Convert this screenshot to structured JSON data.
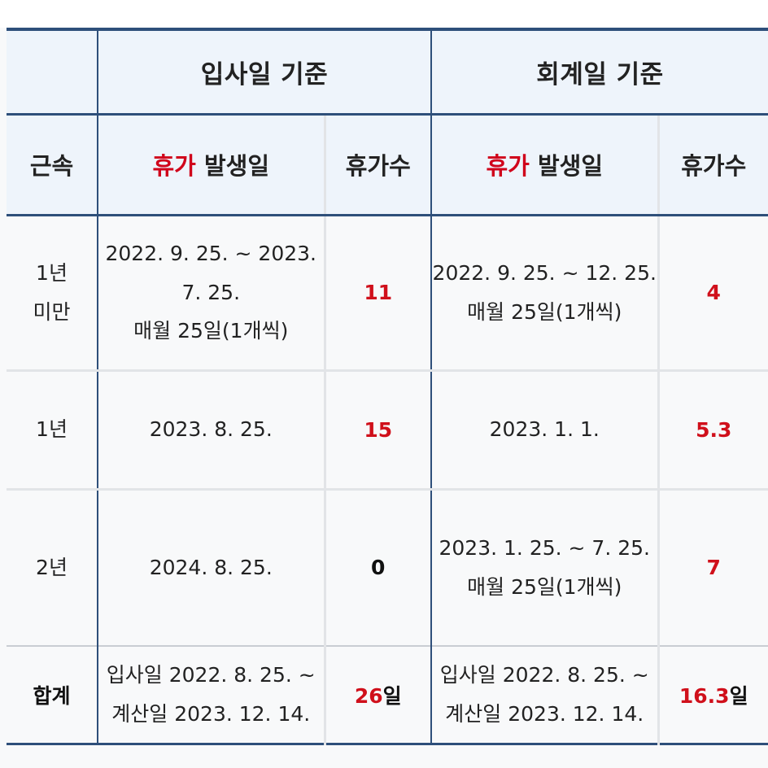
{
  "table": {
    "group_headers": {
      "hire_date_basis": "입사일 기준",
      "accounting_basis": "회계일 기준"
    },
    "column_headers": {
      "tenure": "근속",
      "leave_word": "휴가",
      "issue_date_rest": " 발생일",
      "leave_count": "휴가수"
    },
    "rows": [
      {
        "tenure": "1년\n미만",
        "hire_issue": "2022. 9. 25. ~ 2023.\n7. 25.\n매월 25일(1개씩)",
        "hire_count": "11",
        "acct_issue": "2022. 9. 25. ~ 12. 25.\n매월 25일(1개씩)",
        "acct_count": "4"
      },
      {
        "tenure": "1년",
        "hire_issue": "2023. 8. 25.",
        "hire_count": "15",
        "acct_issue": "2023. 1. 1.",
        "acct_count": "5.3"
      },
      {
        "tenure": "2년",
        "hire_issue": "2024. 8. 25.",
        "hire_count": "0",
        "acct_issue": "2023. 1. 25. ~ 7. 25.\n매월 25일(1개씩)",
        "acct_count": "7"
      }
    ],
    "total": {
      "label": "합계",
      "hire_period": "입사일 2022. 8. 25. ~\n계산일 2023. 12. 14.",
      "hire_total_value": "26",
      "acct_period": "입사일 2022. 8. 25. ~\n계산일 2023. 12. 14.",
      "acct_total_value": "16.3",
      "unit": "일"
    }
  },
  "colors": {
    "header_navy": "#123a80",
    "accent_red": "#d0021b",
    "rule_navy": "#2e4f7a",
    "header_bg": "#eef4fb",
    "body_bg": "#f8f9fa"
  }
}
